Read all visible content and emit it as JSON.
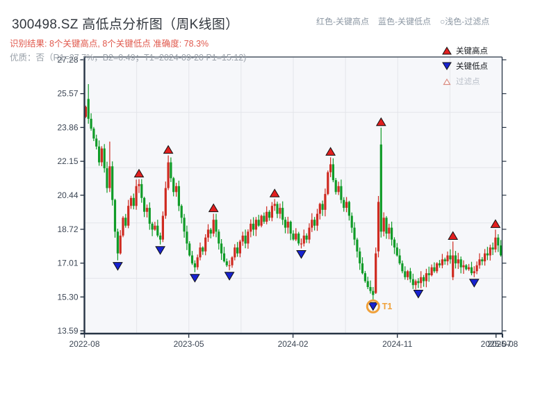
{
  "header": {
    "title": "300498.SZ 高低点分析图（周K线图）",
    "result_line": "识别结果: 8个关键高点, 8个关键低点  准确度: 78.3%",
    "quality_line": "优质：否（R1=27.7%，B2=0.49；T1=2024-09-20 P1=15.12)"
  },
  "legend_top": {
    "items": [
      {
        "label": "红色-关键高点"
      },
      {
        "label": "蓝色-关键低点"
      },
      {
        "label": "○浅色-过滤点"
      }
    ]
  },
  "plot_legend": {
    "items": [
      {
        "symbol": "red-up-triangle",
        "label": "关键高点"
      },
      {
        "symbol": "blue-down-triangle",
        "label": "关键低点"
      },
      {
        "symbol": "open-triangle",
        "label": "过滤点"
      }
    ]
  },
  "chart_data": {
    "type": "candlestick",
    "title": "300498.SZ 高低点分析图（周K线图）",
    "xlabel": "",
    "ylabel": "",
    "ylim": [
      13.45,
      27.42
    ],
    "grid": {
      "h_divisions": 5,
      "v_divisions": 8,
      "grid_on": true
    },
    "y_ticks": [
      27.28,
      25.57,
      23.86,
      22.15,
      20.44,
      18.72,
      17.01,
      15.3,
      13.59
    ],
    "x_ticks": [
      {
        "label": "2022-08",
        "week": -0.5
      },
      {
        "label": "2023-05",
        "week": 38.7
      },
      {
        "label": "2024-02",
        "week": 77.9
      },
      {
        "label": "2024-11",
        "week": 117.1
      },
      {
        "label": "2025-07",
        "week": 154.2
      },
      {
        "label": "2025-08",
        "week": 156.7
      }
    ],
    "weeks": 157,
    "closes": [
      24.9,
      24.3,
      23.8,
      23.3,
      22.9,
      22.1,
      22.8,
      21.8,
      20.8,
      21.9,
      20.2,
      18.6,
      17.5,
      18.4,
      19.3,
      18.9,
      19.9,
      20.3,
      19.9,
      20.9,
      21.0,
      20.3,
      19.6,
      19.8,
      19.0,
      18.7,
      18.9,
      18.4,
      18.2,
      19.4,
      20.8,
      22.1,
      21.3,
      20.6,
      20.9,
      19.9,
      19.3,
      18.6,
      18.0,
      17.4,
      17.0,
      16.8,
      17.3,
      17.8,
      17.6,
      18.3,
      18.7,
      18.5,
      19.2,
      18.6,
      18.0,
      17.5,
      17.1,
      16.9,
      16.9,
      17.3,
      17.8,
      17.5,
      18.1,
      18.4,
      18.0,
      18.6,
      19.0,
      18.7,
      19.2,
      18.9,
      19.4,
      19.1,
      19.6,
      19.3,
      19.9,
      20.0,
      19.5,
      19.8,
      19.2,
      18.8,
      19.1,
      18.5,
      18.2,
      18.5,
      18.0,
      18.0,
      18.4,
      18.2,
      18.8,
      19.2,
      18.9,
      19.5,
      20.0,
      19.7,
      20.5,
      21.6,
      22.0,
      21.2,
      20.6,
      20.9,
      20.2,
      19.8,
      20.1,
      19.4,
      18.8,
      18.2,
      17.6,
      17.0,
      16.5,
      16.1,
      15.8,
      15.6,
      15.4,
      17.5,
      20.1,
      18.6,
      19.3,
      18.5,
      18.8,
      18.2,
      17.8,
      17.4,
      17.0,
      16.6,
      16.3,
      16.6,
      16.2,
      15.9,
      16.1,
      16.0,
      16.3,
      16.1,
      16.5,
      16.4,
      16.8,
      16.6,
      17.0,
      16.9,
      17.2,
      17.1,
      17.4,
      17.2,
      17.4,
      17.0,
      17.2,
      16.8,
      16.9,
      16.7,
      16.8,
      16.5,
      16.6,
      16.9,
      17.2,
      17.1,
      17.5,
      17.4,
      17.8,
      17.7,
      18.3,
      17.9,
      17.4
    ],
    "open_overrides": {
      "0": 24.4,
      "1": 25.3,
      "109": 15.5,
      "110": 17.6,
      "111": 23.0,
      "138": 16.3
    },
    "range_overrides": {
      "1": [
        26.05,
        24.05
      ],
      "9": [
        23.15,
        20.6
      ],
      "12": [
        18.75,
        17.15
      ],
      "20": [
        21.25,
        20.55
      ],
      "28": [
        18.55,
        17.95
      ],
      "31": [
        22.45,
        20.7
      ],
      "41": [
        17.15,
        16.55
      ],
      "48": [
        19.5,
        18.35
      ],
      "54": [
        17.15,
        16.65
      ],
      "71": [
        20.25,
        19.65
      ],
      "81": [
        18.25,
        17.75
      ],
      "92": [
        22.35,
        21.35
      ],
      "108": [
        15.8,
        15.12
      ],
      "109": [
        17.8,
        15.45
      ],
      "110": [
        20.4,
        17.3
      ],
      "111": [
        23.85,
        18.3
      ],
      "125": [
        16.25,
        15.75
      ],
      "138": [
        18.1,
        16.15
      ],
      "146": [
        16.85,
        16.3
      ],
      "154": [
        18.7,
        17.55
      ]
    },
    "key_high_weeks": [
      20,
      31,
      48,
      71,
      92,
      111,
      138,
      154
    ],
    "key_low_weeks": [
      12,
      28,
      41,
      54,
      81,
      108,
      125,
      146
    ],
    "t1": {
      "week": 108,
      "label": "T1",
      "price": 15.12,
      "date": "2024-09-20"
    },
    "colors": {
      "up": "#cf2a20",
      "down": "#0f9b27",
      "key_high": "#e21f1f",
      "key_low": "#1722cf",
      "marker_edge": "#111111",
      "t1_ring": "#f0a13a",
      "plot_bg": "#f6f7fa",
      "grid": "#e3e5ea",
      "spine": "#273445",
      "tick_label": "#3c4654"
    }
  }
}
